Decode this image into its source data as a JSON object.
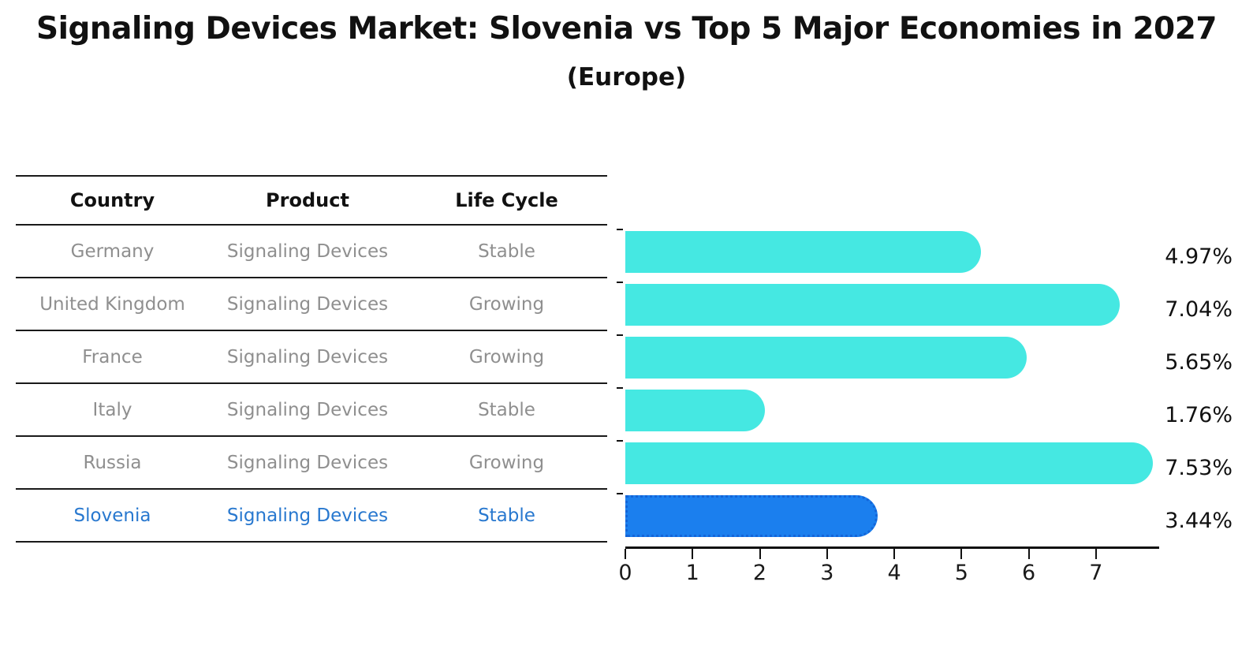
{
  "title": "Signaling Devices Market: Slovenia vs Top 5 Major Economies in 2027",
  "subtitle": "(Europe)",
  "table": {
    "headers": [
      "Country",
      "Product",
      "Life Cycle"
    ],
    "rows": [
      {
        "country": "Germany",
        "product": "Signaling Devices",
        "life_cycle": "Stable",
        "highlight": false
      },
      {
        "country": "United Kingdom",
        "product": "Signaling Devices",
        "life_cycle": "Growing",
        "highlight": false
      },
      {
        "country": "France",
        "product": "Signaling Devices",
        "life_cycle": "Growing",
        "highlight": false
      },
      {
        "country": "Italy",
        "product": "Signaling Devices",
        "life_cycle": "Stable",
        "highlight": false
      },
      {
        "country": "Russia",
        "product": "Signaling Devices",
        "life_cycle": "Growing",
        "highlight": false
      },
      {
        "country": "Slovenia",
        "product": "Signaling Devices",
        "life_cycle": "Stable",
        "highlight": true
      }
    ]
  },
  "chart_data": {
    "type": "bar",
    "orientation": "horizontal",
    "title": "Signaling Devices Market: Slovenia vs Top 5 Major Economies in 2027",
    "subtitle": "(Europe)",
    "categories": [
      "Germany",
      "United Kingdom",
      "France",
      "Italy",
      "Russia",
      "Slovenia"
    ],
    "values": [
      4.97,
      7.04,
      5.65,
      1.76,
      7.53,
      3.44
    ],
    "value_labels": [
      "4.97%",
      "7.04%",
      "5.65%",
      "1.76%",
      "7.53%",
      "3.44%"
    ],
    "x_ticks": [
      0,
      1,
      2,
      3,
      4,
      5,
      6,
      7
    ],
    "xlim": [
      0,
      7.94
    ],
    "xlabel": "",
    "ylabel": "",
    "grid": false,
    "legend": "none",
    "bar_color": "#45E8E2",
    "highlight_color": "#1B7FEE",
    "highlight_border_color": "#1465D8",
    "highlight_index": 5,
    "highlight_category": "Slovenia"
  },
  "colors": {
    "text": "#111111",
    "muted_text": "#8f8f8f",
    "highlight_text": "#2878cf",
    "line": "#1a1a1a"
  }
}
